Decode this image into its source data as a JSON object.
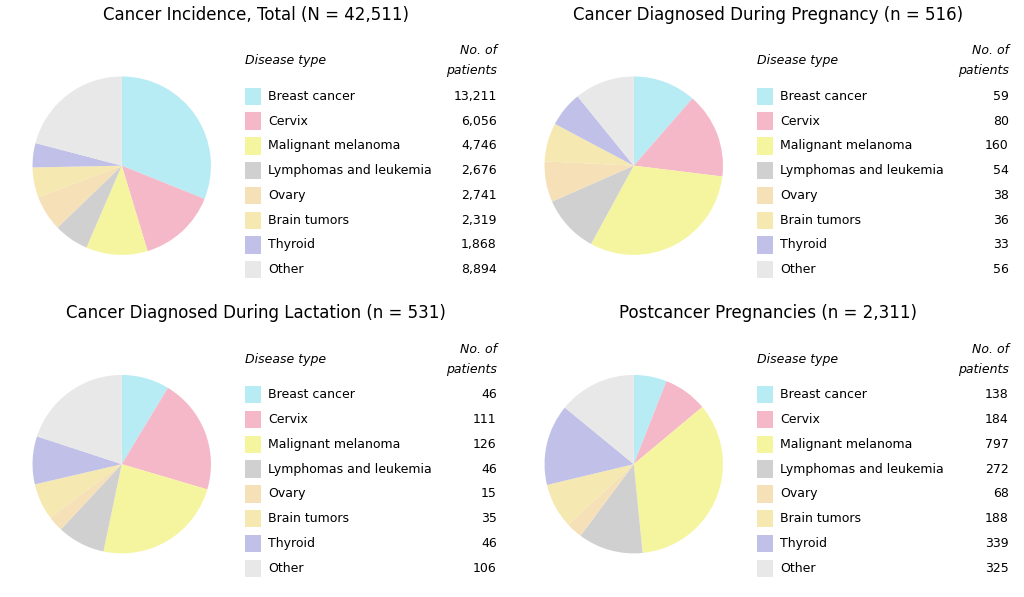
{
  "chart_data": [
    {
      "type": "pie",
      "title": "Cancer Incidence, Total (N = 42,511)",
      "categories": [
        "Breast cancer",
        "Cervix",
        "Malignant melanoma",
        "Lymphomas and leukemia",
        "Ovary",
        "Brain tumors",
        "Thyroid",
        "Other"
      ],
      "values": [
        13211,
        6056,
        4746,
        2676,
        2741,
        2319,
        1868,
        8894
      ],
      "value_labels": [
        "13,211",
        "6,056",
        "4,746",
        "2,676",
        "2,741",
        "2,319",
        "1,868",
        "8,894"
      ],
      "colors": [
        "#b8ecf5",
        "#f5b8c8",
        "#f5f5a0",
        "#d0d0d0",
        "#f5e0b8",
        "#f5e8b0",
        "#c0c0e8",
        "#e8e8e8"
      ],
      "annotations": [
        "No. of",
        "patients",
        "Disease type"
      ],
      "legend": "right",
      "data_labels": true
    },
    {
      "type": "pie",
      "title": "Cancer Diagnosed During Pregnancy (n = 516)",
      "categories": [
        "Breast cancer",
        "Cervix",
        "Malignant melanoma",
        "Lymphomas and leukemia",
        "Ovary",
        "Brain tumors",
        "Thyroid",
        "Other"
      ],
      "values": [
        59,
        80,
        160,
        54,
        38,
        36,
        33,
        56
      ],
      "colors": [
        "#b8ecf5",
        "#f5b8c8",
        "#f5f5a0",
        "#d0d0d0",
        "#f5e0b8",
        "#f5e8b0",
        "#c0c0e8",
        "#e8e8e8"
      ],
      "annotations": [
        "No. of",
        "patients",
        "Disease type"
      ],
      "legend": "right",
      "data_labels": true
    },
    {
      "type": "pie",
      "title": "Cancer Diagnosed During Lactation (n = 531)",
      "categories": [
        "Breast cancer",
        "Cervix",
        "Malignant melanoma",
        "Lymphomas and leukemia",
        "Ovary",
        "Brain tumors",
        "Thyroid",
        "Other"
      ],
      "values": [
        46,
        111,
        126,
        46,
        15,
        35,
        46,
        106
      ],
      "colors": [
        "#b8ecf5",
        "#f5b8c8",
        "#f5f5a0",
        "#d0d0d0",
        "#f5e0b8",
        "#f5e8b0",
        "#c0c0e8",
        "#e8e8e8"
      ],
      "annotations": [
        "No. of",
        "patients",
        "Disease type"
      ],
      "legend": "right",
      "data_labels": true
    },
    {
      "type": "pie",
      "title": "Postcancer Pregnancies (n = 2,311)",
      "categories": [
        "Breast cancer",
        "Cervix",
        "Malignant melanoma",
        "Lymphomas and leukemia",
        "Ovary",
        "Brain tumors",
        "Thyroid",
        "Other"
      ],
      "values": [
        138,
        184,
        797,
        272,
        68,
        188,
        339,
        325
      ],
      "colors": [
        "#b8ecf5",
        "#f5b8c8",
        "#f5f5a0",
        "#d0d0d0",
        "#f5e0b8",
        "#f5e8b0",
        "#c0c0e8",
        "#e8e8e8"
      ],
      "annotations": [
        "No. of",
        "patients",
        "Disease type"
      ],
      "legend": "right",
      "data_labels": true
    }
  ]
}
